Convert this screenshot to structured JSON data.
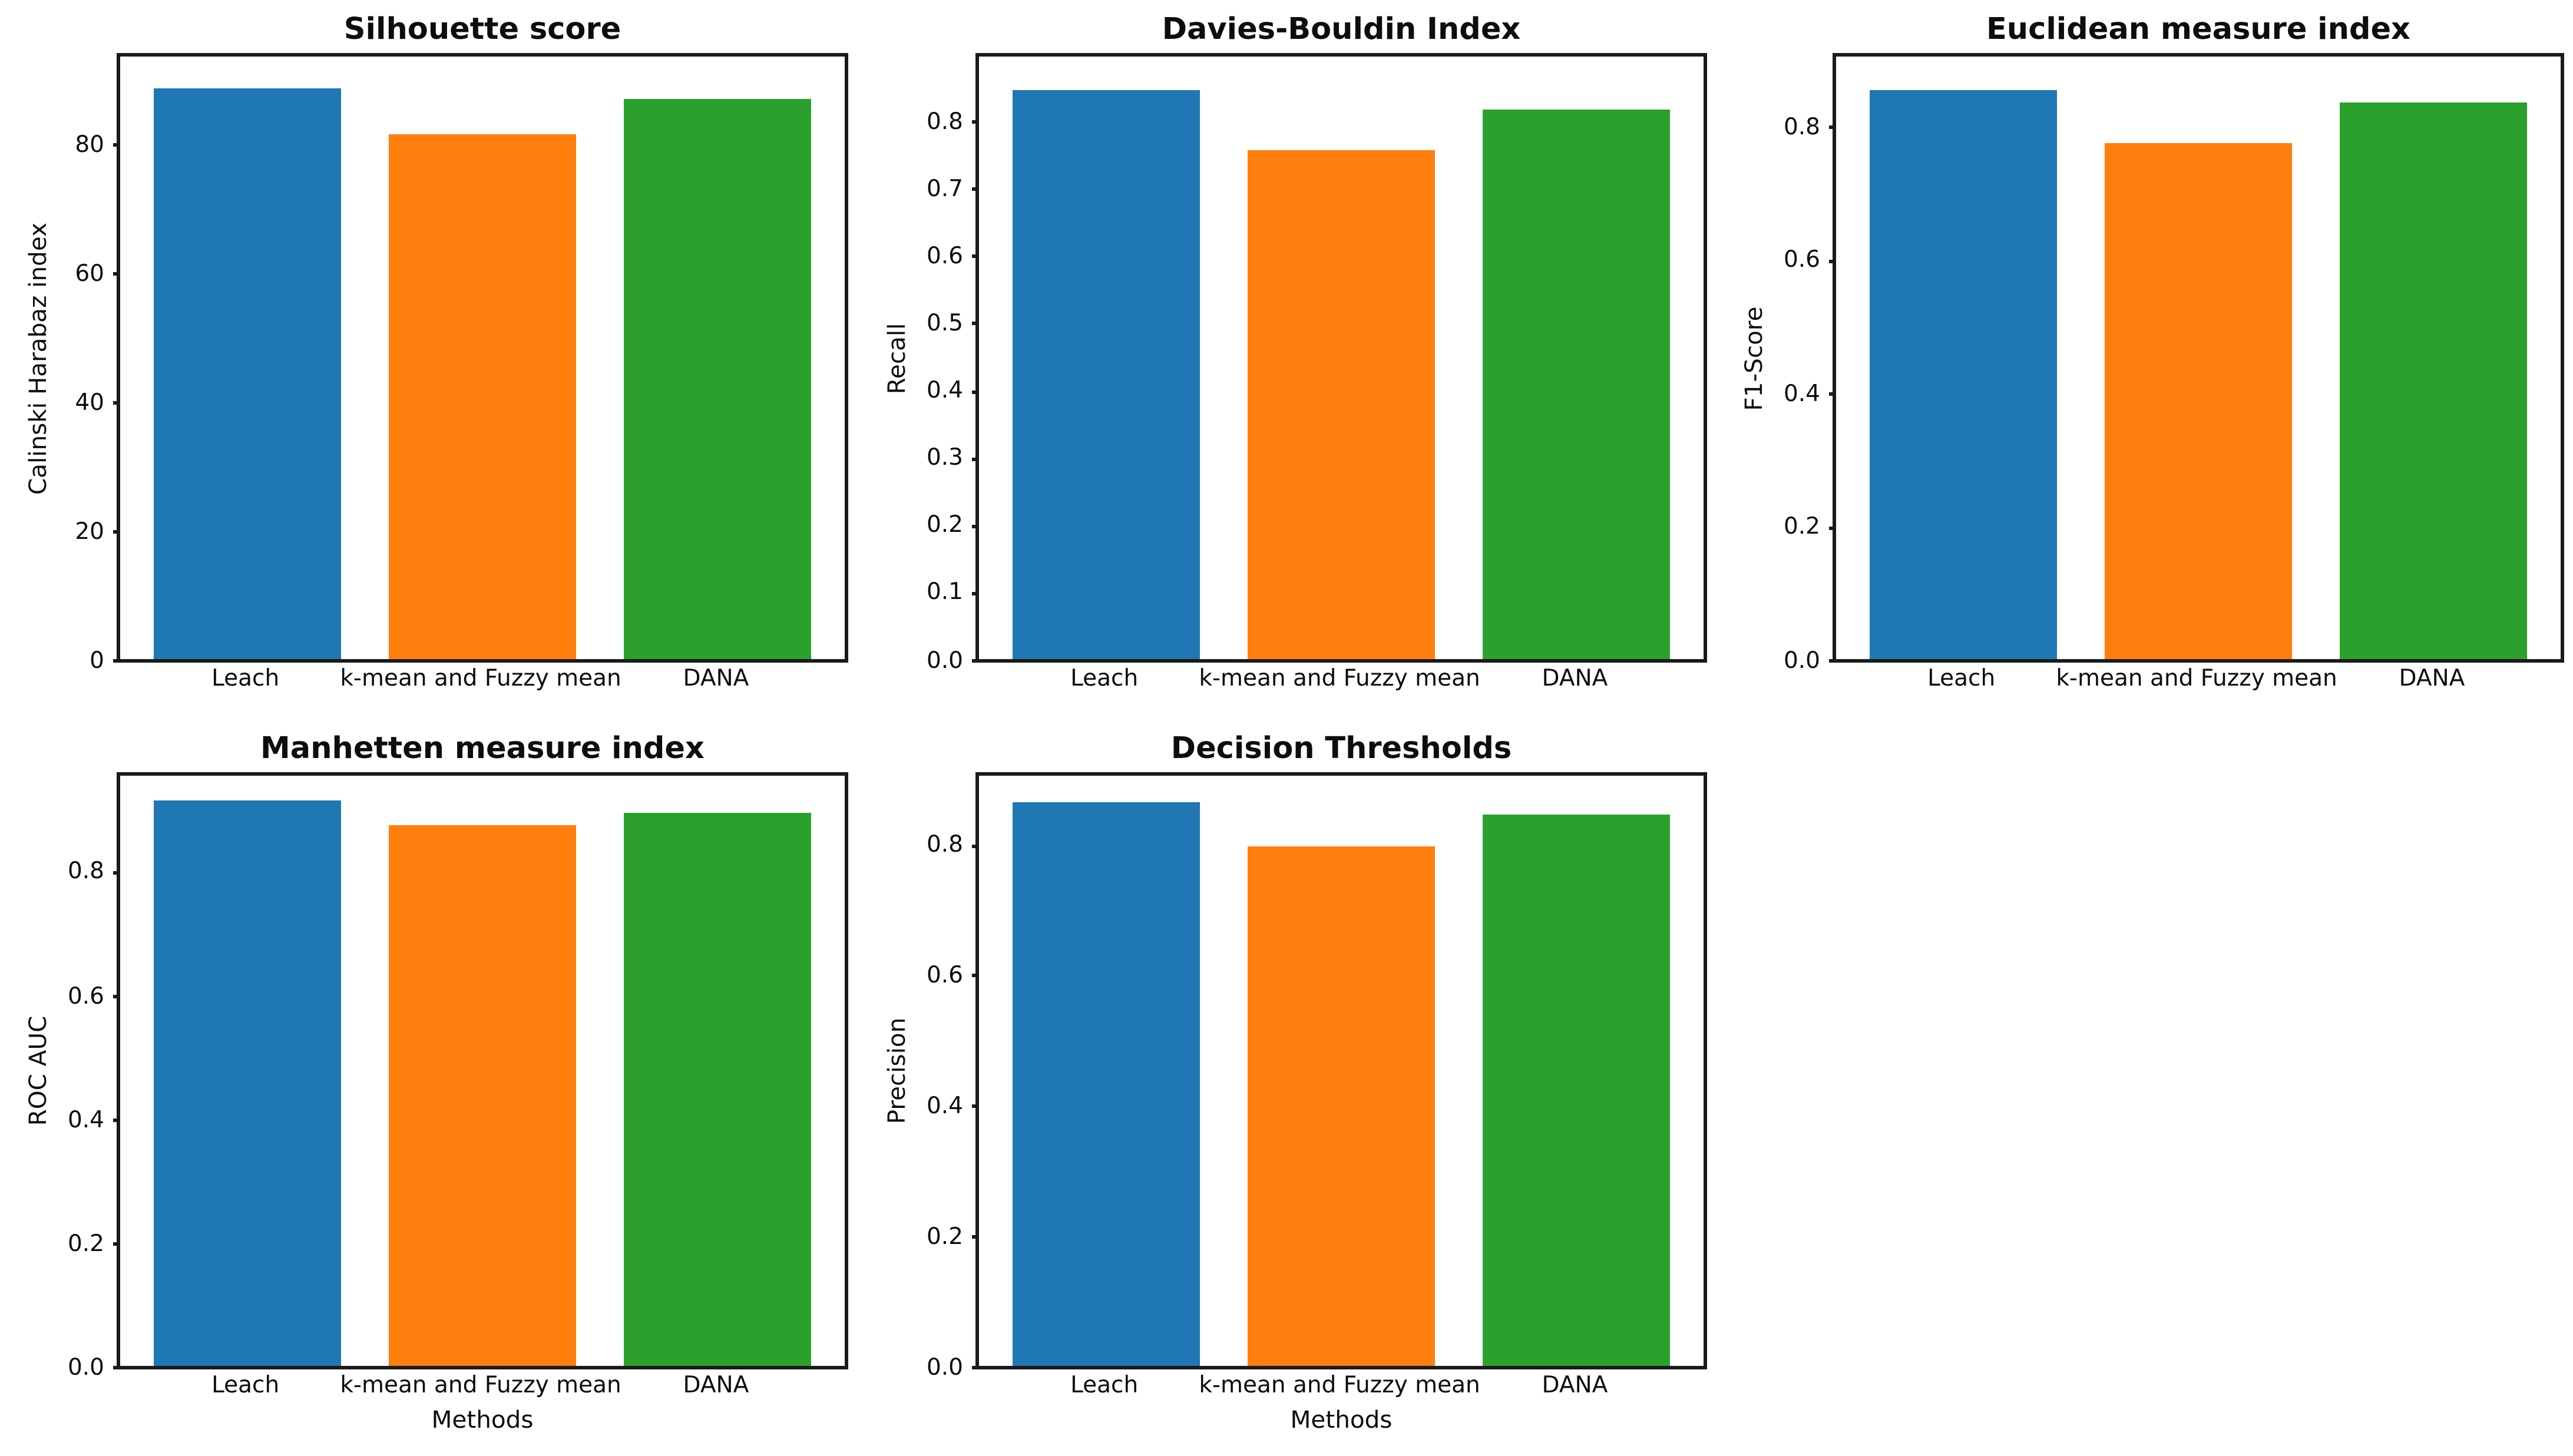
{
  "colors": {
    "bars": [
      "#1f77b4",
      "#ff7f0e",
      "#2ca02c"
    ],
    "frame": "#1a1a1a",
    "text": "#0d0d0d",
    "background": "#ffffff"
  },
  "layout": {
    "grid_rows": 2,
    "grid_cols": 3,
    "empty_cells": [
      "row 1 col 2"
    ],
    "legend": "none",
    "grid_lines": false
  },
  "chart_data": [
    {
      "type": "bar",
      "title": "Silhouette score",
      "ylabel": "Calinski Harabaz index",
      "xlabel": "",
      "categories": [
        "Leach",
        "k-mean and Fuzzy mean",
        "DANA"
      ],
      "values": [
        89,
        82,
        87.5
      ],
      "ylim": [
        0,
        94
      ],
      "ytick_values": [
        0,
        20,
        40,
        60,
        80
      ],
      "ytick_labels": [
        "0",
        "20",
        "40",
        "60",
        "80"
      ]
    },
    {
      "type": "bar",
      "title": "Davies-Bouldin Index",
      "ylabel": "Recall",
      "xlabel": "",
      "categories": [
        "Leach",
        "k-mean and Fuzzy mean",
        "DANA"
      ],
      "values": [
        0.85,
        0.76,
        0.82
      ],
      "ylim": [
        0,
        0.9
      ],
      "ytick_values": [
        0,
        0.1,
        0.2,
        0.3,
        0.4,
        0.5,
        0.6,
        0.7,
        0.8
      ],
      "ytick_labels": [
        "0.0",
        "0.1",
        "0.2",
        "0.3",
        "0.4",
        "0.5",
        "0.6",
        "0.7",
        "0.8"
      ]
    },
    {
      "type": "bar",
      "title": "Euclidean measure index",
      "ylabel": "F1-Score",
      "xlabel": "",
      "categories": [
        "Leach",
        "k-mean and Fuzzy mean",
        "DANA"
      ],
      "values": [
        0.86,
        0.78,
        0.84
      ],
      "ylim": [
        0,
        0.91
      ],
      "ytick_values": [
        0,
        0.2,
        0.4,
        0.6,
        0.8
      ],
      "ytick_labels": [
        "0.0",
        "0.2",
        "0.4",
        "0.6",
        "0.8"
      ]
    },
    {
      "type": "bar",
      "title": "Manhetten measure index",
      "ylabel": "ROC AUC",
      "xlabel": "Methods",
      "categories": [
        "Leach",
        "k-mean and Fuzzy mean",
        "DANA"
      ],
      "values": [
        0.92,
        0.88,
        0.9
      ],
      "ylim": [
        0,
        0.96
      ],
      "ytick_values": [
        0,
        0.2,
        0.4,
        0.6,
        0.8
      ],
      "ytick_labels": [
        "0.0",
        "0.2",
        "0.4",
        "0.6",
        "0.8"
      ]
    },
    {
      "type": "bar",
      "title": "Decision Thresholds",
      "ylabel": "Precision",
      "xlabel": "Methods",
      "categories": [
        "Leach",
        "k-mean and Fuzzy mean",
        "DANA"
      ],
      "values": [
        0.87,
        0.8,
        0.85
      ],
      "ylim": [
        0,
        0.91
      ],
      "ytick_values": [
        0,
        0.2,
        0.4,
        0.6,
        0.8
      ],
      "ytick_labels": [
        "0.0",
        "0.2",
        "0.4",
        "0.6",
        "0.8"
      ]
    }
  ]
}
